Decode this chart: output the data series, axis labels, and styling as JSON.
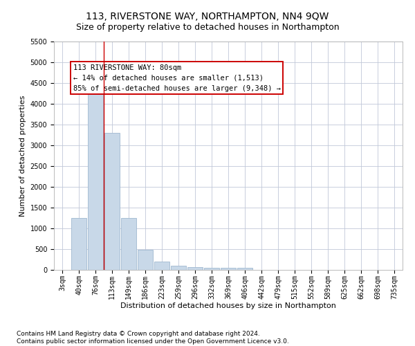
{
  "title": "113, RIVERSTONE WAY, NORTHAMPTON, NN4 9QW",
  "subtitle": "Size of property relative to detached houses in Northampton",
  "xlabel": "Distribution of detached houses by size in Northampton",
  "ylabel": "Number of detached properties",
  "bar_color": "#c8d8e8",
  "bar_edge_color": "#a0b8d0",
  "categories": [
    "3sqm",
    "40sqm",
    "76sqm",
    "113sqm",
    "149sqm",
    "186sqm",
    "223sqm",
    "259sqm",
    "296sqm",
    "332sqm",
    "369sqm",
    "406sqm",
    "442sqm",
    "479sqm",
    "515sqm",
    "552sqm",
    "589sqm",
    "625sqm",
    "662sqm",
    "698sqm",
    "735sqm"
  ],
  "values": [
    0,
    1250,
    4300,
    3300,
    1250,
    490,
    200,
    100,
    75,
    55,
    50,
    50,
    0,
    0,
    0,
    0,
    0,
    0,
    0,
    0,
    0
  ],
  "ylim": [
    0,
    5500
  ],
  "yticks": [
    0,
    500,
    1000,
    1500,
    2000,
    2500,
    3000,
    3500,
    4000,
    4500,
    5000,
    5500
  ],
  "vline_x": 2.5,
  "vline_color": "#cc0000",
  "annotation_box_text": "113 RIVERSTONE WAY: 80sqm\n← 14% of detached houses are smaller (1,513)\n85% of semi-detached houses are larger (9,348) →",
  "footer_text": "Contains HM Land Registry data © Crown copyright and database right 2024.\nContains public sector information licensed under the Open Government Licence v3.0.",
  "background_color": "#ffffff",
  "grid_color": "#c0c8d8",
  "title_fontsize": 10,
  "subtitle_fontsize": 9,
  "axis_label_fontsize": 8,
  "tick_fontsize": 7,
  "footer_fontsize": 6.5,
  "annot_fontsize": 7.5
}
